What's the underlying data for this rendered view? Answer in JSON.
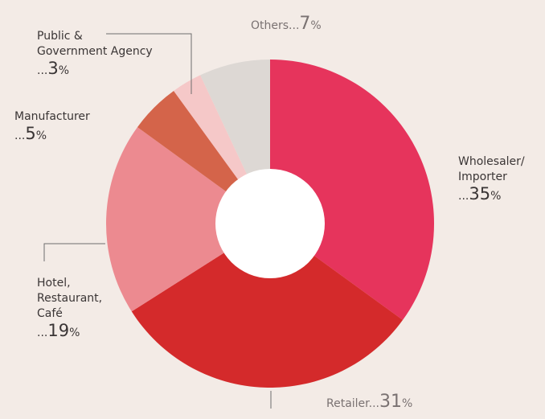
{
  "chart_data": {
    "type": "pie",
    "variant": "donut",
    "start_angle_deg": 0,
    "direction": "clockwise",
    "slices": [
      {
        "label_lines": [
          "Wholesaler/",
          "Importer"
        ],
        "value": 35,
        "color": "#e6345c"
      },
      {
        "label_lines": [
          "Retailer"
        ],
        "value": 31,
        "color": "#d42a2b"
      },
      {
        "label_lines": [
          "Hotel,",
          "Restaurant,",
          "Café"
        ],
        "value": 19,
        "color": "#ec8a90"
      },
      {
        "label_lines": [
          "Manufacturer"
        ],
        "value": 5,
        "color": "#d4644a"
      },
      {
        "label_lines": [
          "Public &",
          "Government Agency"
        ],
        "value": 3,
        "color": "#f5c8c8"
      },
      {
        "label_lines": [
          "Others"
        ],
        "value": 7,
        "color": "#ddd8d4"
      }
    ],
    "value_prefix": "...",
    "value_suffix": "%",
    "leader_line_color": "#6e6e6e",
    "hole_color": "#ffffff"
  }
}
